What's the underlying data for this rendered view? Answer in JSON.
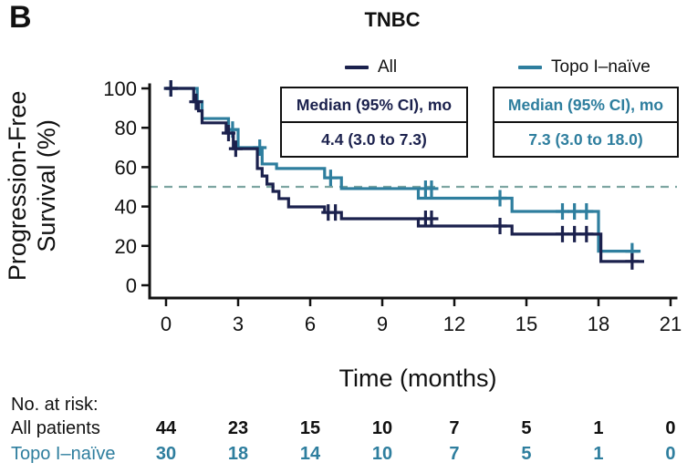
{
  "panel_label": "B",
  "title": "TNBC",
  "colors": {
    "all_series": "#1b214d",
    "topo_series": "#2e7e9e",
    "reference_line": "#7da5a1",
    "axis": "#111111"
  },
  "legend": [
    {
      "label": "All",
      "color": "#1b214d"
    },
    {
      "label": "Topo I–naïve",
      "color": "#2e7e9e"
    }
  ],
  "median_boxes": [
    {
      "header": "Median (95% CI), mo",
      "value": "4.4 (3.0 to 7.3)",
      "series": "All"
    },
    {
      "header": "Median (95% CI), mo",
      "value": "7.3 (3.0 to 18.0)",
      "series": "Topo I–naïve"
    }
  ],
  "y_axis": {
    "title_line1": "Progression-Free",
    "title_line2": "Survival (%)",
    "ticks": [
      0,
      20,
      40,
      60,
      80,
      100
    ]
  },
  "x_axis": {
    "title": "Time (months)",
    "ticks": [
      0,
      3,
      6,
      9,
      12,
      15,
      18,
      21
    ]
  },
  "chart_data": {
    "type": "line",
    "subtype": "kaplan-meier-step",
    "title": "TNBC",
    "xlabel": "Time (months)",
    "ylabel": "Progression-Free Survival (%)",
    "xlim": [
      0,
      21
    ],
    "ylim": [
      0,
      100
    ],
    "reference_line": {
      "y": 50,
      "style": "dashed",
      "color": "#7da5a1"
    },
    "series": [
      {
        "name": "All",
        "color": "#1b214d",
        "median_95ci_mo": "4.4 (3.0 to 7.3)",
        "segments": [
          [
            0,
            1.15,
            100
          ],
          [
            1.15,
            1.35,
            93.2
          ],
          [
            1.35,
            1.5,
            88.6
          ],
          [
            1.5,
            2.5,
            82.5
          ],
          [
            2.5,
            2.8,
            77.3
          ],
          [
            2.8,
            3.8,
            69.4
          ],
          [
            3.8,
            4.0,
            59.3
          ],
          [
            4.0,
            4.2,
            55.5
          ],
          [
            4.2,
            4.45,
            51.4
          ],
          [
            4.45,
            4.7,
            47.7
          ],
          [
            4.7,
            5.1,
            44.0
          ],
          [
            5.1,
            6.6,
            39.8
          ],
          [
            6.6,
            7.3,
            37.0
          ],
          [
            7.3,
            10.5,
            33.8
          ],
          [
            10.5,
            14.4,
            30.1
          ],
          [
            14.4,
            18.1,
            26.0
          ],
          [
            18.1,
            19.9,
            12.1
          ]
        ],
        "censors": [
          [
            0.2,
            100
          ],
          [
            1.25,
            93.2
          ],
          [
            2.6,
            77.3
          ],
          [
            2.9,
            69.4
          ],
          [
            6.75,
            37.0
          ],
          [
            7.05,
            37.0
          ],
          [
            10.8,
            33.8
          ],
          [
            11.05,
            33.8
          ],
          [
            13.9,
            30.1
          ],
          [
            16.5,
            26.0
          ],
          [
            17.0,
            26.0
          ],
          [
            17.5,
            26.0
          ],
          [
            19.4,
            12.1
          ]
        ]
      },
      {
        "name": "Topo I–naïve",
        "color": "#2e7e9e",
        "median_95ci_mo": "7.3 (3.0 to 18.0)",
        "segments": [
          [
            0,
            1.3,
            100
          ],
          [
            1.3,
            1.5,
            93.3
          ],
          [
            1.5,
            2.6,
            84.7
          ],
          [
            2.6,
            3.0,
            79.1
          ],
          [
            3.0,
            4.0,
            69.9
          ],
          [
            4.0,
            4.6,
            61.6
          ],
          [
            4.6,
            6.6,
            59.3
          ],
          [
            6.6,
            7.3,
            54.6
          ],
          [
            7.3,
            10.5,
            49.1
          ],
          [
            10.5,
            14.4,
            44.2
          ],
          [
            14.4,
            18.0,
            37.5
          ],
          [
            18.0,
            19.75,
            17.3
          ]
        ],
        "censors": [
          [
            0.2,
            100
          ],
          [
            2.77,
            79.1
          ],
          [
            3.9,
            69.9
          ],
          [
            6.85,
            54.6
          ],
          [
            10.8,
            49.1
          ],
          [
            11.05,
            49.1
          ],
          [
            13.9,
            44.2
          ],
          [
            16.5,
            37.5
          ],
          [
            17.0,
            37.5
          ],
          [
            17.5,
            37.5
          ],
          [
            19.4,
            17.3
          ]
        ]
      }
    ]
  },
  "at_risk": {
    "title": "No. at risk:",
    "time_points": [
      0,
      3,
      6,
      9,
      12,
      15,
      18,
      21
    ],
    "rows": [
      {
        "label": "All patients",
        "color": "#111111",
        "values": [
          "44",
          "23",
          "15",
          "10",
          "7",
          "5",
          "1",
          "0"
        ]
      },
      {
        "label": "Topo I–naïve",
        "color": "#2e7e9e",
        "values": [
          "30",
          "18",
          "14",
          "10",
          "7",
          "5",
          "1",
          "0"
        ]
      }
    ]
  }
}
